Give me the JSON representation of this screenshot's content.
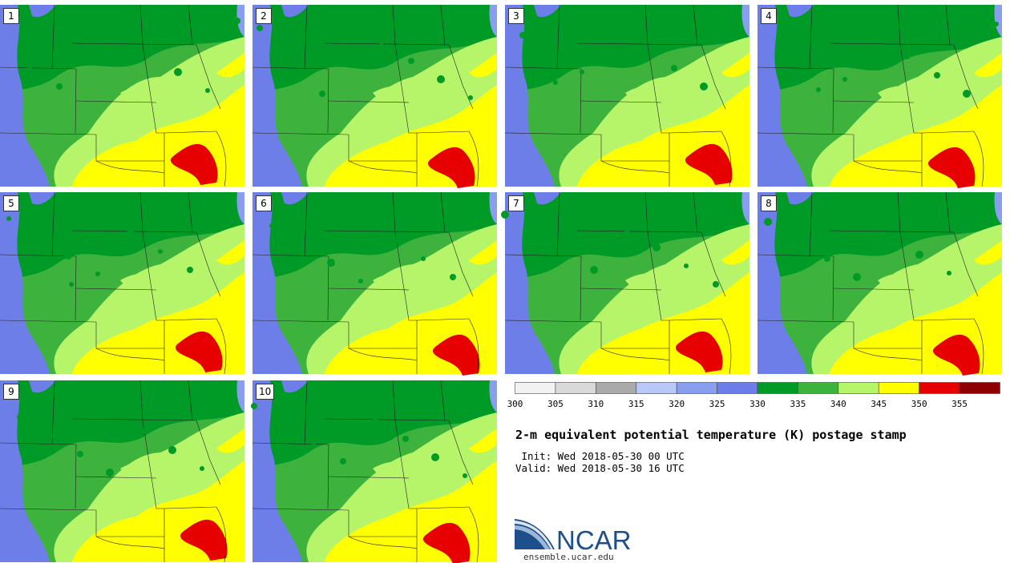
{
  "panels": [
    {
      "label": "1"
    },
    {
      "label": "2"
    },
    {
      "label": "3"
    },
    {
      "label": "4"
    },
    {
      "label": "5"
    },
    {
      "label": "6"
    },
    {
      "label": "7"
    },
    {
      "label": "8"
    },
    {
      "label": "9"
    },
    {
      "label": "10"
    }
  ],
  "colorbar": {
    "ticks": [
      "300",
      "305",
      "310",
      "315",
      "320",
      "325",
      "330",
      "335",
      "340",
      "345",
      "350",
      "355"
    ],
    "colors": [
      "#f2f2f2",
      "#d9d9d9",
      "#aaaaaa",
      "#b8c8f7",
      "#8a9ef0",
      "#6e7ee8",
      "#009a27",
      "#3db33d",
      "#b6f56a",
      "#ffff00",
      "#e60000",
      "#8b0000"
    ]
  },
  "title": "2-m equivalent potential temperature (K) postage stamp",
  "init": " Init: Wed 2018-05-30 00 UTC",
  "valid": "Valid: Wed 2018-05-30 16 UTC",
  "logo": {
    "text": "NCAR",
    "url": "ensemble.ucar.edu",
    "color": "#1d4f8a"
  }
}
